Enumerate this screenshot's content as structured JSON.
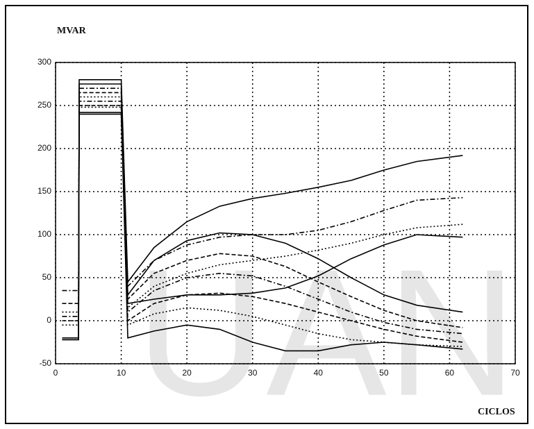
{
  "chart_data": {
    "type": "line",
    "ylabel": "MVAR",
    "xlabel": "CICLOS",
    "watermark": "UAN",
    "x": [
      1,
      3.5,
      3.6,
      10,
      11,
      15,
      20,
      25,
      30,
      35,
      40,
      45,
      50,
      55,
      62
    ],
    "series": [
      {
        "color": "#000000",
        "style": "solid",
        "values": [
          -22,
          -22,
          280,
          280,
          45,
          85,
          115,
          133,
          142,
          148,
          155,
          163,
          175,
          185,
          192
        ]
      },
      {
        "color": "#000000",
        "style": "solid",
        "values": [
          -20,
          -20,
          275,
          275,
          30,
          70,
          93,
          102,
          100,
          90,
          72,
          50,
          30,
          18,
          10
        ]
      },
      {
        "color": "#000000",
        "style": "solid",
        "values": [
          -22,
          -22,
          240,
          240,
          20,
          25,
          30,
          30,
          32,
          38,
          52,
          72,
          88,
          100,
          97
        ]
      },
      {
        "color": "#000000",
        "style": "dashdot",
        "values": [
          35,
          35,
          270,
          270,
          40,
          70,
          88,
          97,
          100,
          100,
          105,
          115,
          128,
          140,
          143
        ]
      },
      {
        "color": "#000000",
        "style": "dashed",
        "values": [
          20,
          20,
          265,
          265,
          25,
          55,
          70,
          78,
          75,
          63,
          45,
          28,
          12,
          0,
          -8
        ]
      },
      {
        "color": "#000000",
        "style": "dotted",
        "values": [
          10,
          10,
          260,
          260,
          15,
          40,
          55,
          65,
          70,
          75,
          82,
          90,
          100,
          108,
          112
        ]
      },
      {
        "color": "#000000",
        "style": "dashdot",
        "values": [
          5,
          5,
          255,
          255,
          10,
          35,
          50,
          55,
          52,
          40,
          25,
          10,
          -2,
          -10,
          -15
        ]
      },
      {
        "color": "#000000",
        "style": "dashed",
        "values": [
          0,
          0,
          250,
          250,
          0,
          20,
          30,
          32,
          28,
          20,
          10,
          0,
          -10,
          -18,
          -25
        ]
      },
      {
        "color": "#000000",
        "style": "dotted",
        "values": [
          -5,
          -5,
          248,
          248,
          -5,
          8,
          15,
          12,
          5,
          -5,
          -15,
          -22,
          -25,
          -28,
          -30
        ]
      },
      {
        "color": "#000000",
        "style": "solid",
        "values": [
          -22,
          -22,
          242,
          242,
          -20,
          -12,
          -5,
          -10,
          -25,
          -35,
          -35,
          -28,
          -25,
          -28,
          -33
        ]
      }
    ],
    "xlim": [
      0,
      70
    ],
    "xticks": [
      0,
      10,
      20,
      30,
      40,
      50,
      60,
      70
    ],
    "ylim": [
      -50,
      300
    ],
    "yticks": [
      -50,
      0,
      50,
      100,
      150,
      200,
      250,
      300
    ],
    "grid": true
  }
}
